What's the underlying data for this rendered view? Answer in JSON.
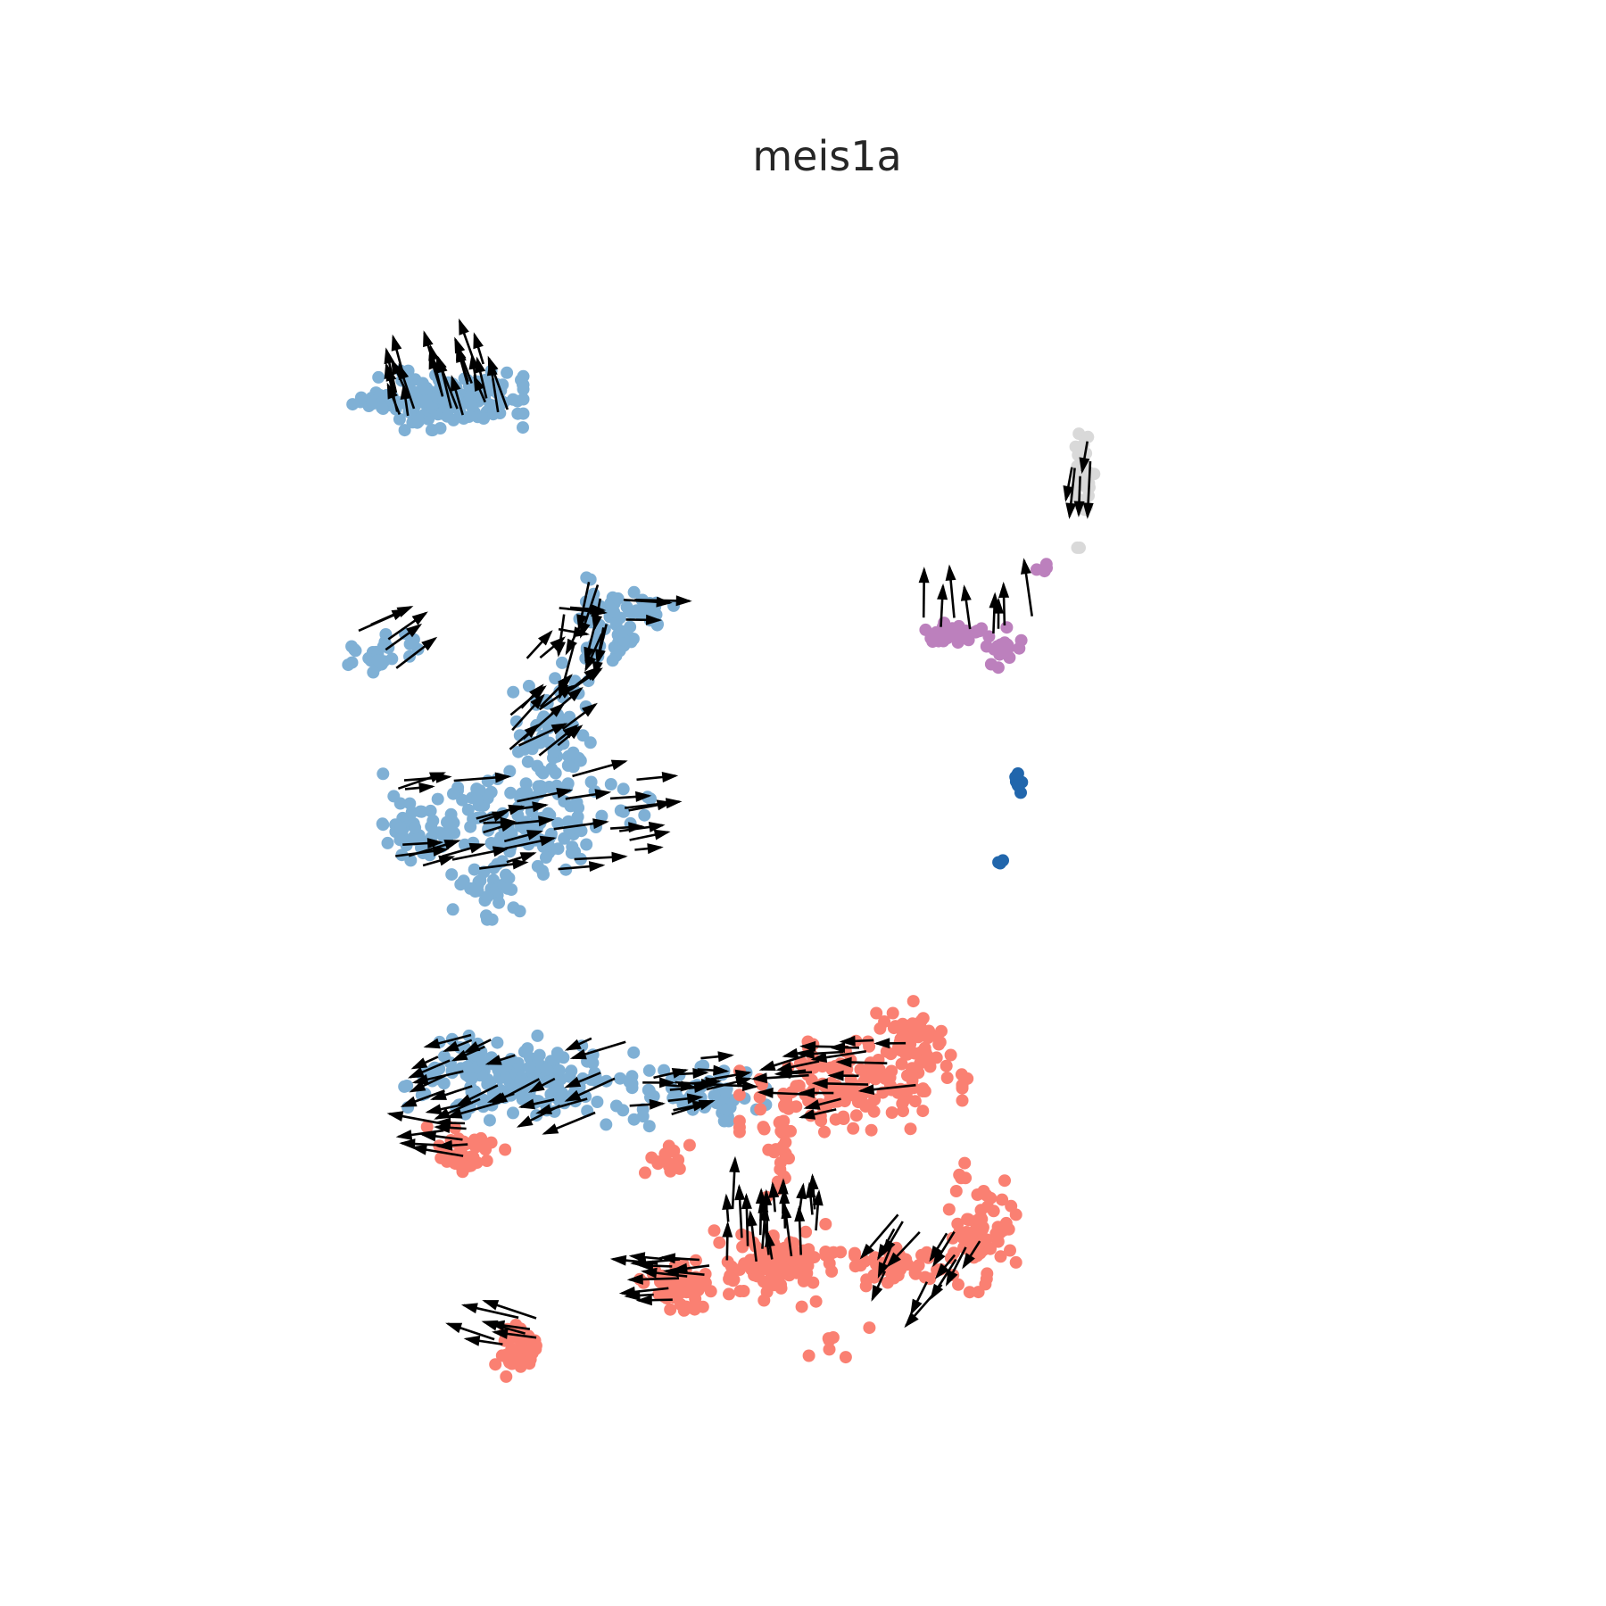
{
  "chart_data": {
    "type": "scatter",
    "title": "meis1a",
    "xlabel": "",
    "ylabel": "",
    "axes_visible": false,
    "grid": false,
    "legend": "none",
    "xlim": [
      0,
      100
    ],
    "ylim": [
      0,
      100
    ],
    "arrow_color": "#000000",
    "series": [
      {
        "color": "#7fb0d5",
        "clusters": [
          {
            "cx": 22.5,
            "cy": 84.5,
            "rx": 6.5,
            "ry": 2.3,
            "n": 140,
            "seed": 11
          },
          {
            "cx": 15.2,
            "cy": 84.5,
            "rx": 2.2,
            "ry": 0.6,
            "n": 24,
            "seed": 12
          },
          {
            "cx": 36.5,
            "cy": 65.0,
            "rx": 1.8,
            "ry": 4.0,
            "n": 30,
            "seed": 13
          },
          {
            "cx": 41.0,
            "cy": 66.5,
            "rx": 3.2,
            "ry": 1.5,
            "n": 30,
            "seed": 14
          },
          {
            "cx": 39.5,
            "cy": 64.0,
            "rx": 1.0,
            "ry": 2.0,
            "n": 14,
            "seed": 15
          },
          {
            "cx": 15.5,
            "cy": 63.0,
            "rx": 4.0,
            "ry": 1.8,
            "n": 26,
            "seed": 16
          },
          {
            "cx": 32.5,
            "cy": 56.0,
            "rx": 3.5,
            "ry": 6.0,
            "n": 70,
            "seed": 17
          },
          {
            "cx": 29.0,
            "cy": 48.5,
            "rx": 12.0,
            "ry": 4.0,
            "n": 150,
            "seed": 18
          },
          {
            "cx": 19.0,
            "cy": 48.0,
            "rx": 3.0,
            "ry": 2.0,
            "n": 34,
            "seed": 19
          },
          {
            "cx": 26.0,
            "cy": 43.0,
            "rx": 3.0,
            "ry": 2.5,
            "n": 30,
            "seed": 20
          },
          {
            "cx": 30.0,
            "cy": 26.5,
            "rx": 11.0,
            "ry": 3.5,
            "n": 150,
            "seed": 21
          },
          {
            "cx": 47.0,
            "cy": 25.5,
            "rx": 6.0,
            "ry": 2.2,
            "n": 60,
            "seed": 22
          },
          {
            "cx": 24.5,
            "cy": 27.5,
            "rx": 4.5,
            "ry": 2.5,
            "n": 40,
            "seed": 23
          }
        ]
      },
      {
        "color": "#fa8072",
        "clusters": [
          {
            "cx": 62.0,
            "cy": 26.0,
            "rx": 10.0,
            "ry": 3.5,
            "n": 140,
            "seed": 31
          },
          {
            "cx": 68.0,
            "cy": 30.0,
            "rx": 5.0,
            "ry": 3.0,
            "n": 50,
            "seed": 32
          },
          {
            "cx": 55.0,
            "cy": 21.0,
            "rx": 1.5,
            "ry": 4.0,
            "n": 30,
            "seed": 33
          },
          {
            "cx": 54.0,
            "cy": 11.0,
            "rx": 5.0,
            "ry": 3.0,
            "n": 110,
            "seed": 34
          },
          {
            "cx": 45.0,
            "cy": 9.0,
            "rx": 3.5,
            "ry": 2.0,
            "n": 50,
            "seed": 35
          },
          {
            "cx": 66.0,
            "cy": 10.5,
            "rx": 6.0,
            "ry": 1.6,
            "n": 50,
            "seed": 36
          },
          {
            "cx": 75.0,
            "cy": 14.0,
            "rx": 3.0,
            "ry": 5.0,
            "n": 70,
            "seed": 37
          },
          {
            "cx": 24.0,
            "cy": 20.5,
            "rx": 3.5,
            "ry": 2.0,
            "n": 40,
            "seed": 38
          },
          {
            "cx": 29.0,
            "cy": 3.5,
            "rx": 2.5,
            "ry": 2.0,
            "n": 40,
            "seed": 39
          },
          {
            "cx": 43.5,
            "cy": 20.0,
            "rx": 3.0,
            "ry": 1.2,
            "n": 16,
            "seed": 40
          },
          {
            "cx": 61.0,
            "cy": 5.0,
            "rx": 4.0,
            "ry": 3.0,
            "n": 8,
            "seed": 41
          }
        ]
      },
      {
        "color": "#bc80bd",
        "clusters": [
          {
            "cx": 72.0,
            "cy": 64.5,
            "rx": 3.3,
            "ry": 1.0,
            "n": 30,
            "seed": 51
          },
          {
            "cx": 77.5,
            "cy": 63.5,
            "rx": 1.5,
            "ry": 1.8,
            "n": 18,
            "seed": 52
          },
          {
            "cx": 81.0,
            "cy": 70.0,
            "rx": 0.6,
            "ry": 0.5,
            "n": 4,
            "seed": 53
          }
        ]
      },
      {
        "color": "#d9d9d9",
        "clusters": [
          {
            "cx": 84.8,
            "cy": 78.0,
            "rx": 1.3,
            "ry": 5.5,
            "n": 30,
            "seed": 61
          }
        ]
      },
      {
        "color": "#2166ac",
        "clusters": [
          {
            "cx": 78.5,
            "cy": 52.5,
            "rx": 0.35,
            "ry": 1.6,
            "n": 10,
            "seed": 71
          },
          {
            "cx": 76.8,
            "cy": 45.0,
            "rx": 0.4,
            "ry": 0.5,
            "n": 3,
            "seed": 72
          }
        ]
      }
    ],
    "arrow_fields": [
      {
        "cx": 22.5,
        "cy": 85.5,
        "rx": 6.5,
        "ry": 2.5,
        "n": 24,
        "dx": -0.3,
        "dy": 1.0,
        "seed": 101
      },
      {
        "cx": 36.0,
        "cy": 66.5,
        "rx": 3.0,
        "ry": 3.0,
        "n": 10,
        "dx": -0.3,
        "dy": -1.0,
        "seed": 102
      },
      {
        "cx": 31.5,
        "cy": 58.5,
        "rx": 3.5,
        "ry": 4.5,
        "n": 16,
        "dx": 0.8,
        "dy": 0.6,
        "seed": 103
      },
      {
        "cx": 29.0,
        "cy": 48.5,
        "rx": 12.0,
        "ry": 4.0,
        "n": 34,
        "dx": 1.0,
        "dy": 0.2,
        "seed": 104
      },
      {
        "cx": 30.0,
        "cy": 27.0,
        "rx": 11.0,
        "ry": 3.5,
        "n": 26,
        "dx": -1.0,
        "dy": -0.4,
        "seed": 105
      },
      {
        "cx": 46.0,
        "cy": 26.0,
        "rx": 6.0,
        "ry": 2.5,
        "n": 16,
        "dx": 1.0,
        "dy": 0.1,
        "seed": 106
      },
      {
        "cx": 63.0,
        "cy": 27.0,
        "rx": 6.0,
        "ry": 3.0,
        "n": 20,
        "dx": -1.0,
        "dy": -0.1,
        "seed": 107
      },
      {
        "cx": 54.0,
        "cy": 13.0,
        "rx": 5.0,
        "ry": 3.0,
        "n": 20,
        "dx": 0.0,
        "dy": 1.0,
        "seed": 108
      },
      {
        "cx": 45.0,
        "cy": 9.5,
        "rx": 3.5,
        "ry": 2.0,
        "n": 12,
        "dx": -1.0,
        "dy": 0.0,
        "seed": 109
      },
      {
        "cx": 70.0,
        "cy": 12.0,
        "rx": 5.0,
        "ry": 3.5,
        "n": 14,
        "dx": -0.5,
        "dy": -0.8,
        "seed": 110
      },
      {
        "cx": 74.0,
        "cy": 65.5,
        "rx": 6.0,
        "ry": 1.0,
        "n": 8,
        "dx": 0.0,
        "dy": 1.0,
        "seed": 111
      },
      {
        "cx": 85.0,
        "cy": 80.0,
        "rx": 1.5,
        "ry": 3.0,
        "n": 5,
        "dx": -0.2,
        "dy": -1.0,
        "seed": 112
      },
      {
        "cx": 29.0,
        "cy": 4.5,
        "rx": 3.0,
        "ry": 2.0,
        "n": 7,
        "dx": -1.0,
        "dy": 0.2,
        "seed": 113
      },
      {
        "cx": 24.0,
        "cy": 21.5,
        "rx": 3.0,
        "ry": 1.5,
        "n": 8,
        "dx": -1.0,
        "dy": 0.0,
        "seed": 114
      },
      {
        "cx": 16.0,
        "cy": 63.5,
        "rx": 3.0,
        "ry": 2.0,
        "n": 5,
        "dx": 0.8,
        "dy": 0.5,
        "seed": 115
      },
      {
        "cx": 37.0,
        "cy": 66.0,
        "rx": 4.0,
        "ry": 2.0,
        "n": 6,
        "dx": 1.0,
        "dy": -0.1,
        "seed": 116
      }
    ]
  }
}
